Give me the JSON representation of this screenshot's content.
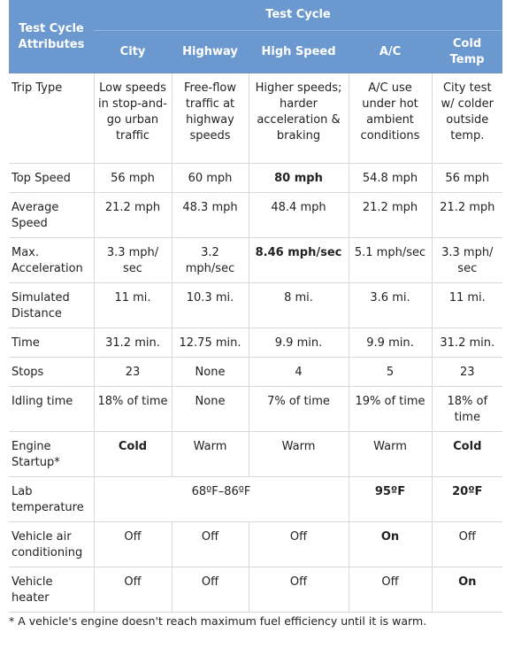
{
  "header": {
    "attributes_label": "Test Cycle Attributes",
    "group_label": "Test Cycle",
    "columns": [
      "City",
      "Highway",
      "High Speed",
      "A/C",
      "Cold Temp"
    ]
  },
  "rows": [
    {
      "label": "Trip Type",
      "cells": [
        "Low speeds in stop-and-go urban traffic",
        "Free-flow traffic at highway speeds",
        "Higher speeds; harder acceleration & braking",
        "A/C use under hot ambient conditions",
        "City test w/ colder outside temp."
      ]
    },
    {
      "label": "Top Speed",
      "cells": [
        "56 mph",
        "60 mph",
        "80 mph",
        "54.8 mph",
        "56 mph"
      ]
    },
    {
      "label": "Average Speed",
      "cells": [
        "21.2 mph",
        "48.3 mph",
        "48.4 mph",
        "21.2 mph",
        "21.2 mph"
      ]
    },
    {
      "label": "Max. Acceleration",
      "cells": [
        "3.3 mph/ sec",
        "3.2 mph/sec",
        "8.46 mph/sec",
        "5.1 mph/sec",
        "3.3 mph/ sec"
      ]
    },
    {
      "label": "Simulated Distance",
      "cells": [
        "11 mi.",
        "10.3 mi.",
        "8 mi.",
        "3.6 mi.",
        "11 mi."
      ]
    },
    {
      "label": "Time",
      "cells": [
        "31.2 min.",
        "12.75 min.",
        "9.9 min.",
        "9.9 min.",
        "31.2 min."
      ]
    },
    {
      "label": "Stops",
      "cells": [
        "23",
        "None",
        "4",
        "5",
        "23"
      ]
    },
    {
      "label": "Idling time",
      "cells": [
        "18% of time",
        "None",
        "7% of time",
        "19% of time",
        "18% of time"
      ]
    },
    {
      "label": "Engine Startup*",
      "cells": [
        "Cold",
        "Warm",
        "Warm",
        "Warm",
        "Cold"
      ]
    },
    {
      "label": "Lab temperature",
      "span_value": "68ºF–86ºF",
      "cells": [
        "95ºF",
        "20ºF"
      ]
    },
    {
      "label": "Vehicle air conditioning",
      "cells": [
        "Off",
        "Off",
        "Off",
        "On",
        "Off"
      ]
    },
    {
      "label": "Vehicle heater",
      "cells": [
        "Off",
        "Off",
        "Off",
        "Off",
        "On"
      ]
    }
  ],
  "footnote": "* A vehicle's engine doesn't reach maximum fuel efficiency until it is warm."
}
